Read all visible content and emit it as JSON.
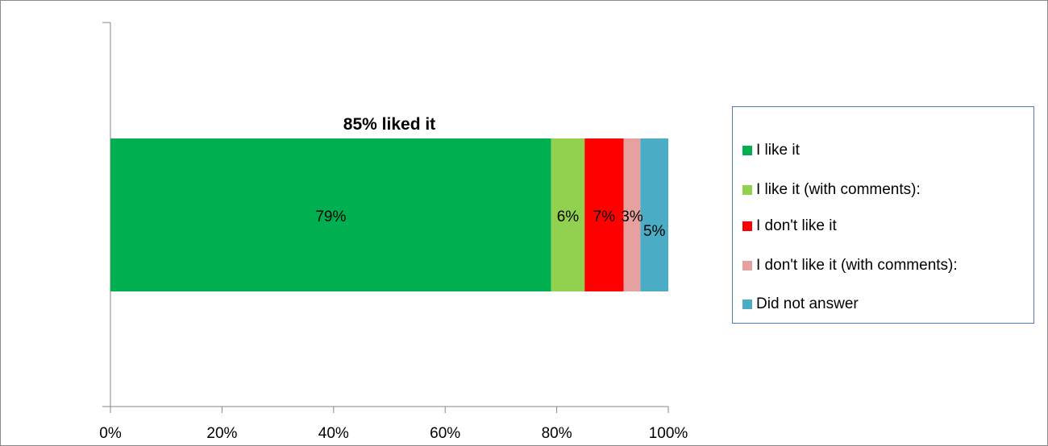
{
  "chart_data": {
    "type": "bar",
    "orientation": "horizontal",
    "stacked": "100%",
    "title": "85% liked it",
    "xlabel": "",
    "ylabel": "",
    "xlim": [
      0,
      100
    ],
    "x_ticks": [
      "0%",
      "20%",
      "40%",
      "60%",
      "80%",
      "100%"
    ],
    "grid": false,
    "legend_position": "right",
    "series": [
      {
        "name": "I like it",
        "value": 79,
        "label": "79%",
        "color": "#00b050"
      },
      {
        "name": "I like it (with comments):",
        "value": 6,
        "label": "6%",
        "color": "#92d050"
      },
      {
        "name": "I don't like it",
        "value": 7,
        "label": "7%",
        "color": "#ff0000"
      },
      {
        "name": "I don't like it (with comments):",
        "value": 3,
        "label": "3%",
        "color": "#e6a0a0"
      },
      {
        "name": "Did not answer",
        "value": 5,
        "label": "5%",
        "color": "#4bacc6"
      }
    ]
  }
}
